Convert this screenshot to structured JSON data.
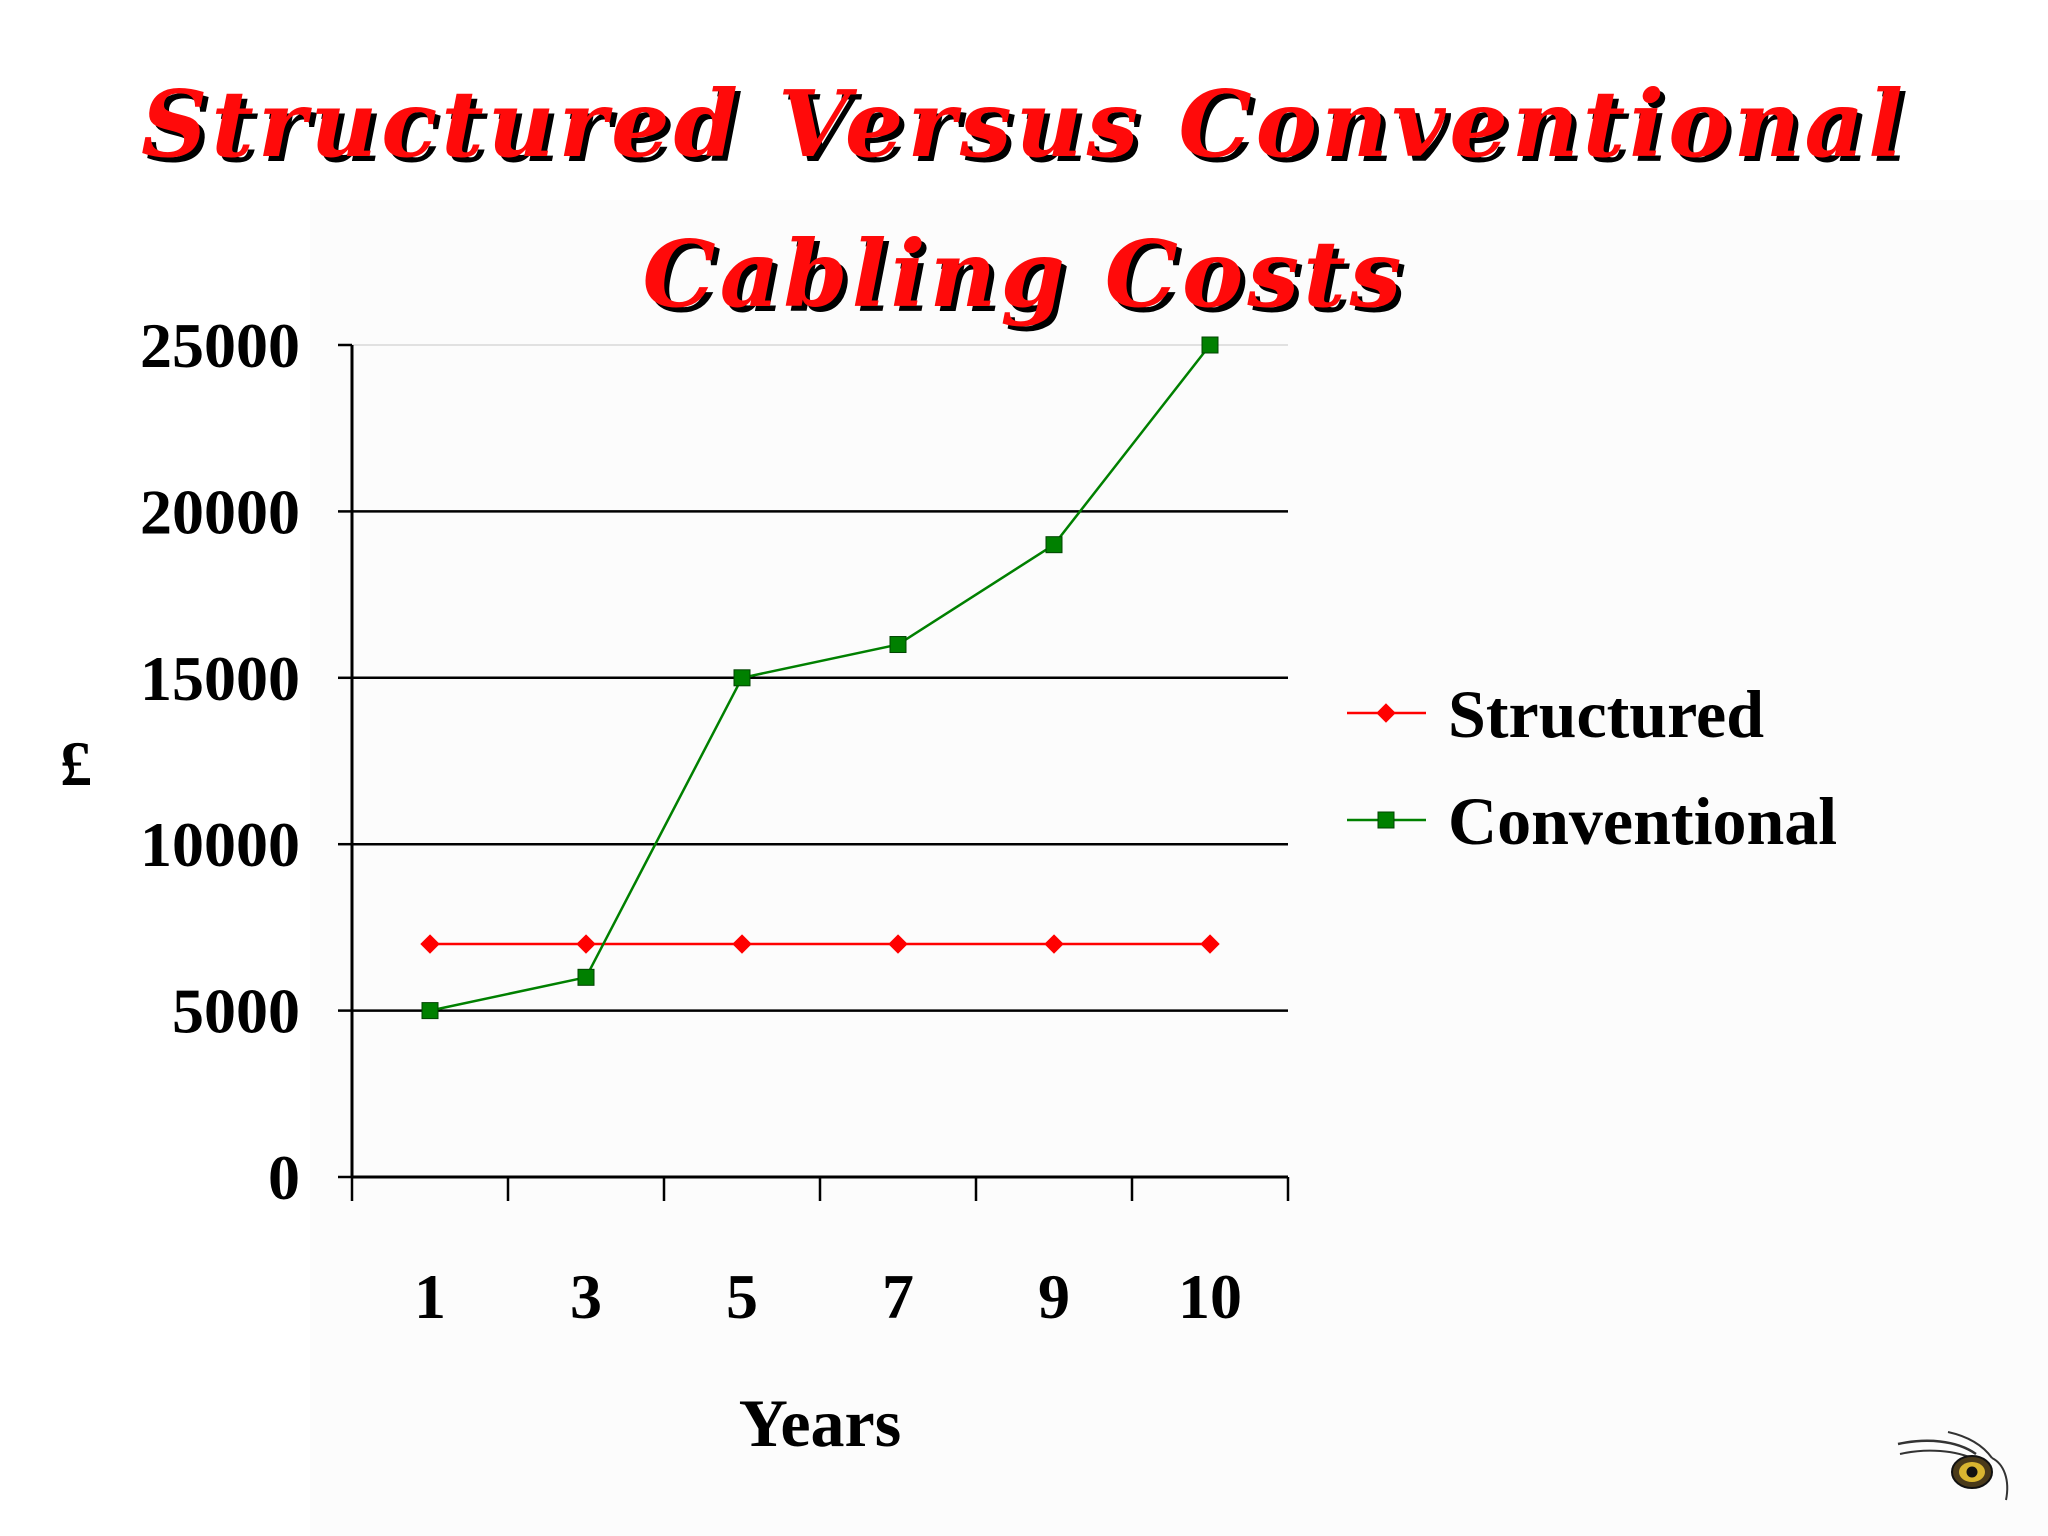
{
  "slide": {
    "title_line1": "Structured Versus Conventional",
    "title_line2": "Cabling Costs"
  },
  "chart_data": {
    "type": "line",
    "title": "Structured Versus Conventional Cabling Costs",
    "xlabel": "Years",
    "ylabel": "£",
    "categories": [
      "1",
      "3",
      "5",
      "7",
      "9",
      "10"
    ],
    "ylim": [
      0,
      25000
    ],
    "yticks": [
      0,
      5000,
      10000,
      15000,
      20000,
      25000
    ],
    "grid": true,
    "legend_position": "right",
    "series": [
      {
        "name": "Structured",
        "values": [
          7000,
          7000,
          7000,
          7000,
          7000,
          7000
        ],
        "color": "#ff0000",
        "marker": "diamond"
      },
      {
        "name": "Conventional",
        "values": [
          5000,
          6000,
          15000,
          16000,
          19000,
          25000
        ],
        "color": "#008000",
        "marker": "square"
      }
    ]
  },
  "logo": {
    "icon": "eye-logo-icon"
  }
}
